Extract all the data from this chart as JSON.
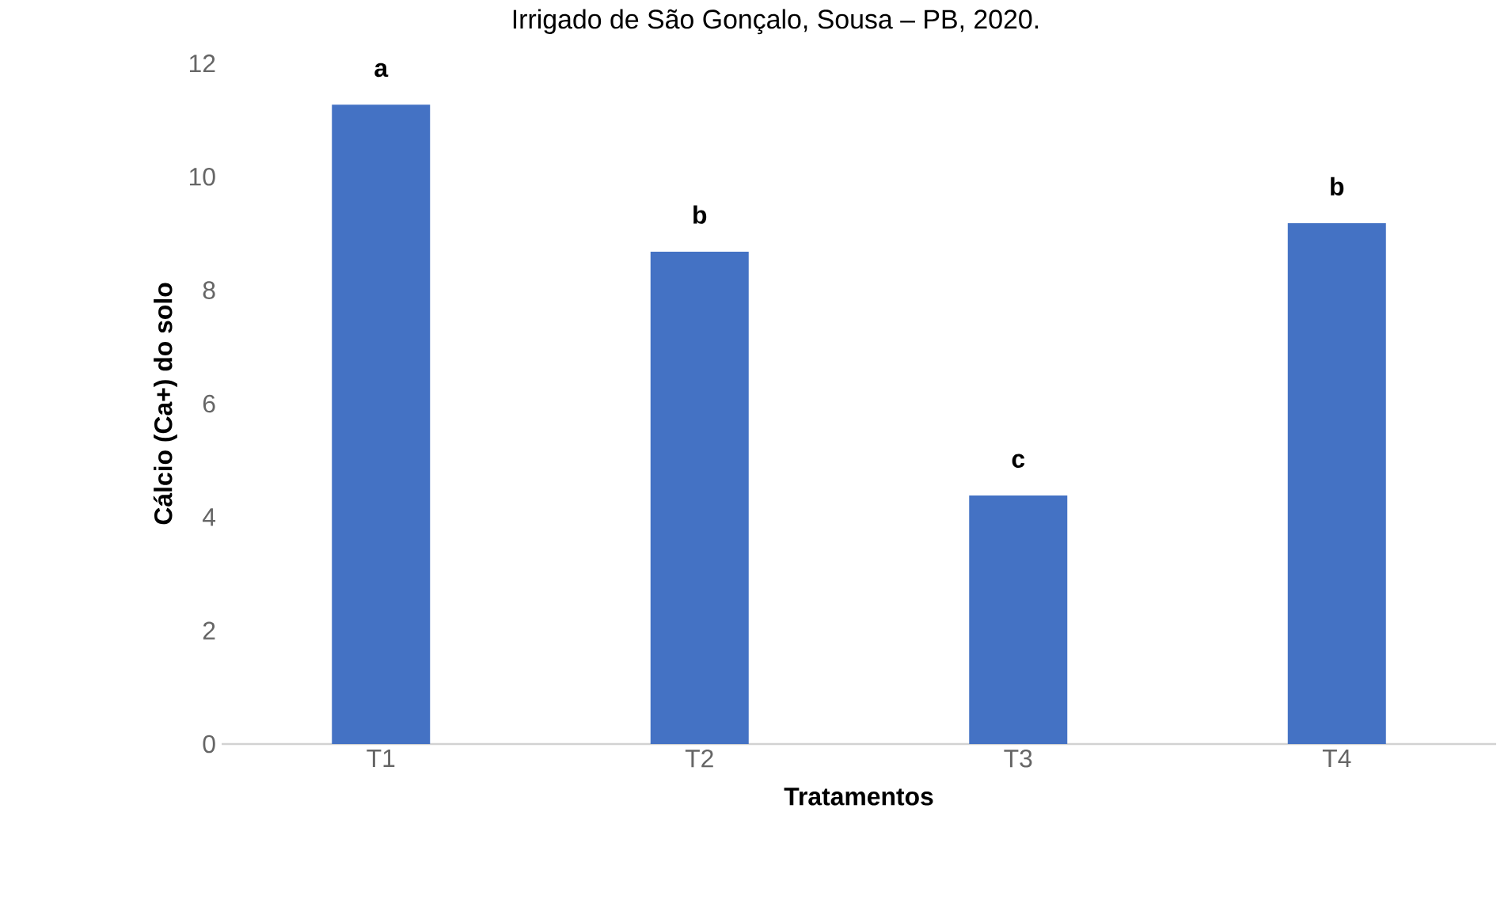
{
  "chart_data": {
    "type": "bar",
    "title": "Irrigado de São Gonçalo, Sousa – PB, 2020.",
    "xlabel": "Tratamentos",
    "ylabel": "Cálcio (Ca+)  do solo",
    "categories": [
      "T1",
      "T2",
      "T3",
      "T4"
    ],
    "values": [
      11.27,
      8.68,
      4.38,
      9.18
    ],
    "color": "#4472c4",
    "ylim": [
      0,
      12
    ],
    "yticks": [
      0,
      2,
      4,
      6,
      8,
      10,
      12
    ],
    "annotations": [
      {
        "text": "a",
        "x": "T1",
        "y": 11.27
      },
      {
        "text": "b",
        "x": "T2",
        "y": 8.68
      },
      {
        "text": "c",
        "x": "T3",
        "y": 4.38
      },
      {
        "text": "b",
        "x": "T4",
        "y": 9.18
      }
    ]
  }
}
